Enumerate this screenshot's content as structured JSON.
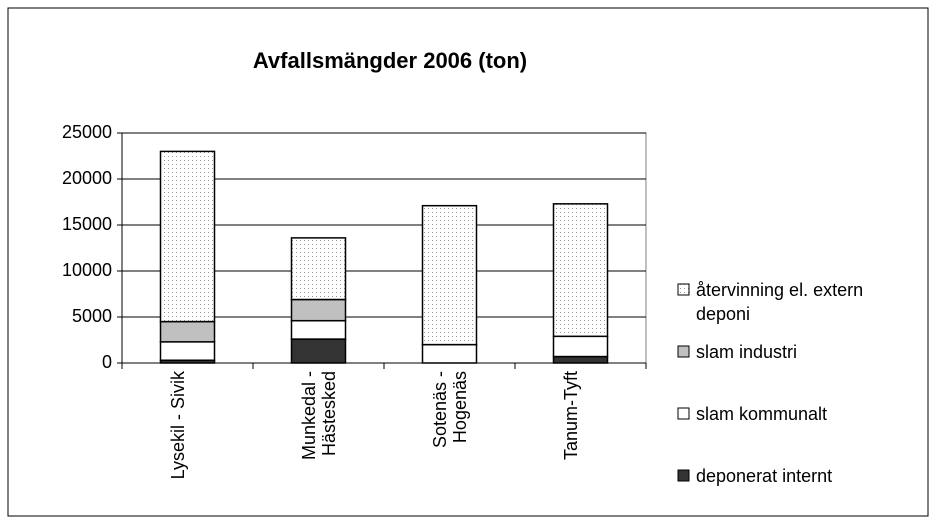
{
  "chart_data": {
    "type": "stacked_bar",
    "title": "Avfallsmängder 2006 (ton)",
    "categories": [
      "Lysekil - Sivik",
      "Munkedal - Hästesked",
      "Sotenäs - Hogenäs",
      "Tanum-Tyft"
    ],
    "series": [
      {
        "name": "deponerat internt",
        "color": "#333333",
        "values": [
          300,
          2600,
          0,
          700
        ]
      },
      {
        "name": "slam kommunalt",
        "color": "#ffffff",
        "values": [
          2000,
          2000,
          2000,
          2200
        ]
      },
      {
        "name": "slam industri",
        "color": "#c0c0c0",
        "values": [
          2200,
          2300,
          0,
          0
        ]
      },
      {
        "name": "återvinning el. extern deponi",
        "color": "#ffffff",
        "pattern": "dots",
        "values": [
          18500,
          6700,
          15100,
          14400
        ]
      }
    ],
    "ylim": [
      0,
      25000
    ],
    "yticks": [
      0,
      5000,
      10000,
      15000,
      20000,
      25000
    ],
    "grid": true,
    "legend": "right"
  }
}
